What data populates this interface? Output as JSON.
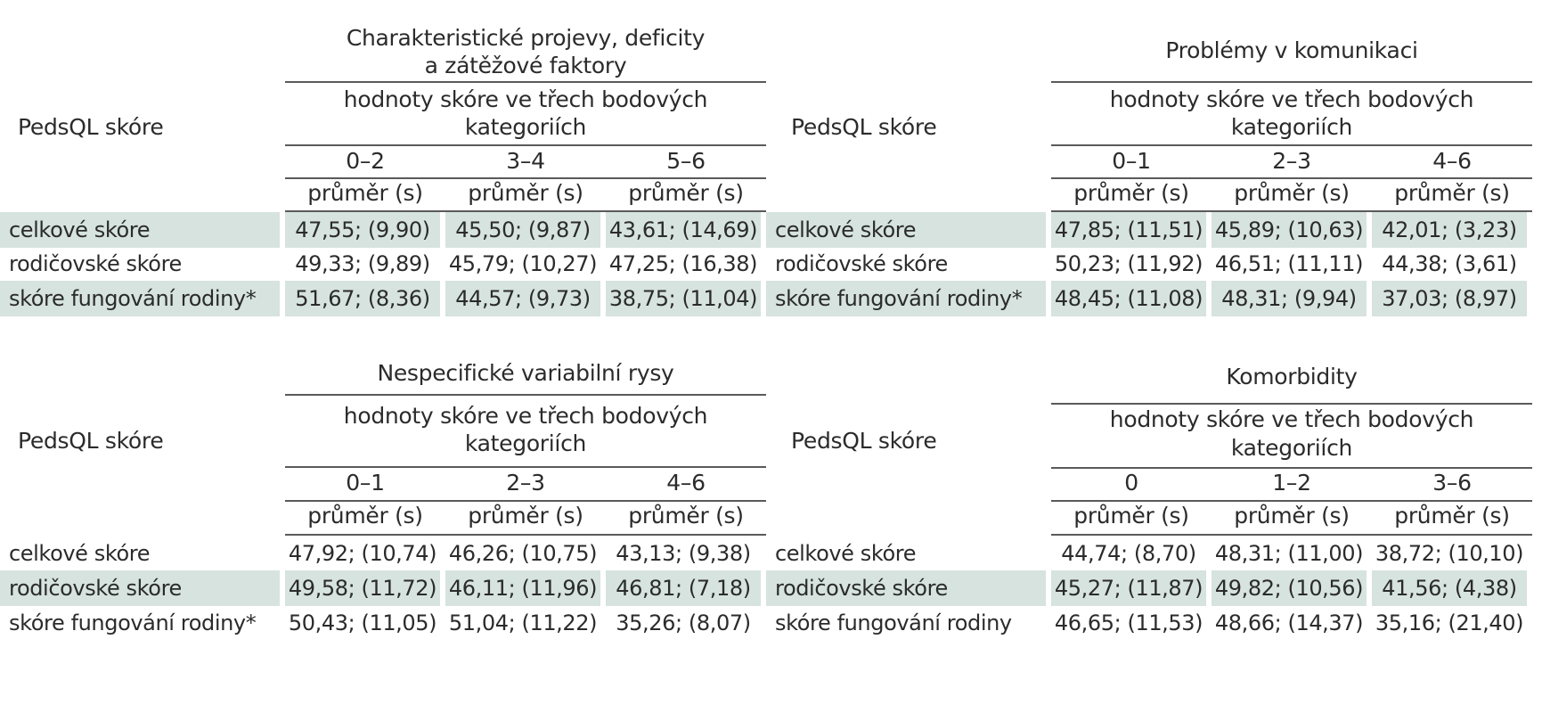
{
  "panels": [
    {
      "row_header": "PedsQL skóre",
      "title_line1": "Charakteristické projevy, deficity",
      "title_line2": "a zátěžové faktory",
      "subtitle_line1": "hodnoty skóre ve třech bodových",
      "subtitle_line2": "kategoriích",
      "categories": [
        "0–2",
        "3–4",
        "5–6"
      ],
      "stat_label": "průměr (s)",
      "rows": [
        {
          "label": "celkové skóre",
          "values": [
            "47,55; (9,90)",
            "45,50; (9,87)",
            "43,61; (14,69)"
          ],
          "shaded": true
        },
        {
          "label": "rodičovské skóre",
          "values": [
            "49,33; (9,89)",
            "45,79; (10,27)",
            "47,25; (16,38)"
          ],
          "shaded": false
        },
        {
          "label": "skóre fungování rodiny*",
          "values": [
            "51,67; (8,36)",
            "44,57; (9,73)",
            "38,75; (11,04)"
          ],
          "shaded": true
        }
      ]
    },
    {
      "row_header": "PedsQL skóre",
      "title_line1": "Problémy v komunikaci",
      "title_line2": "",
      "subtitle_line1": "hodnoty skóre ve třech bodových",
      "subtitle_line2": "kategoriích",
      "categories": [
        "0–1",
        "2–3",
        "4–6"
      ],
      "stat_label": "průměr (s)",
      "rows": [
        {
          "label": "celkové skóre",
          "values": [
            "47,85; (11,51)",
            "45,89; (10,63)",
            "42,01; (3,23)"
          ],
          "shaded": true
        },
        {
          "label": "rodičovské skóre",
          "values": [
            "50,23; (11,92)",
            "46,51; (11,11)",
            "44,38; (3,61)"
          ],
          "shaded": false
        },
        {
          "label": "skóre fungování rodiny*",
          "values": [
            "48,45; (11,08)",
            "48,31; (9,94)",
            "37,03; (8,97)"
          ],
          "shaded": true
        }
      ]
    },
    {
      "row_header": "PedsQL skóre",
      "title_line1": "Nespecifické variabilní rysy",
      "title_line2": "",
      "subtitle_line1": "hodnoty skóre ve třech bodových",
      "subtitle_line2": "kategoriích",
      "categories": [
        "0–1",
        "2–3",
        "4–6"
      ],
      "stat_label": "průměr (s)",
      "rows": [
        {
          "label": "celkové skóre",
          "values": [
            "47,92; (10,74)",
            "46,26; (10,75)",
            "43,13; (9,38)"
          ],
          "shaded": false
        },
        {
          "label": "rodičovské skóre",
          "values": [
            "49,58; (11,72)",
            "46,11; (11,96)",
            "46,81; (7,18)"
          ],
          "shaded": true
        },
        {
          "label": "skóre fungování rodiny*",
          "values": [
            "50,43; (11,05)",
            "51,04; (11,22)",
            "35,26; (8,07)"
          ],
          "shaded": false
        }
      ]
    },
    {
      "row_header": "PedsQL skóre",
      "title_line1": "Komorbidity",
      "title_line2": "",
      "subtitle_line1": "hodnoty skóre ve třech bodových",
      "subtitle_line2": "kategoriích",
      "categories": [
        "0",
        "1–2",
        "3–6"
      ],
      "stat_label": "průměr (s)",
      "rows": [
        {
          "label": "celkové skóre",
          "values": [
            "44,74; (8,70)",
            "48,31; (11,00)",
            "38,72; (10,10)"
          ],
          "shaded": false
        },
        {
          "label": "rodičovské skóre",
          "values": [
            "45,27; (11,87)",
            "49,82; (10,56)",
            "41,56; (4,38)"
          ],
          "shaded": true
        },
        {
          "label": "skóre fungování rodiny",
          "values": [
            "46,65; (11,53)",
            "48,66; (14,37)",
            "35,16; (21,40)"
          ],
          "shaded": false
        }
      ]
    }
  ]
}
